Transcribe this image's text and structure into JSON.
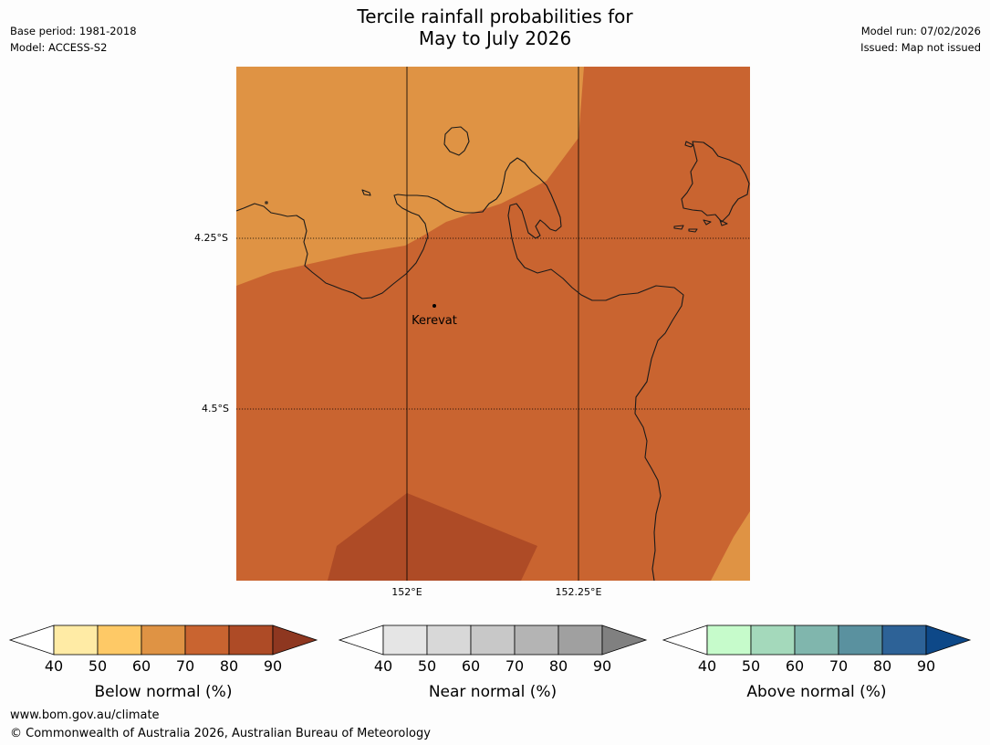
{
  "header": {
    "base_period": "Base period: 1981-2018",
    "model": "Model: ACCESS-S2",
    "title_line1": "Tercile rainfall probabilities for",
    "title_line2": "May to July 2026",
    "model_run": "Model run: 07/02/2026",
    "issued": "Issued: Map not issued"
  },
  "map": {
    "place_label": "Kerevat",
    "lat_labels": [
      "4.25°S",
      "4.5°S"
    ],
    "lon_labels": [
      "152°E",
      "152.25°E"
    ],
    "region_colors": {
      "light_orange": "#df9344",
      "dark_orange": "#c96430",
      "brown": "#ae4b26"
    }
  },
  "colorbars": [
    {
      "caption": "Below normal (%)",
      "ticks": [
        "40",
        "50",
        "60",
        "70",
        "80",
        "90"
      ],
      "colors": [
        "#ffeba5",
        "#fec966",
        "#df9344",
        "#c96430",
        "#ae4b26"
      ],
      "extend_color": "#8e3720"
    },
    {
      "caption": "Near normal (%)",
      "ticks": [
        "40",
        "50",
        "60",
        "70",
        "80",
        "90"
      ],
      "colors": [
        "#e5e5e5",
        "#d8d8d8",
        "#c8c8c8",
        "#b4b4b4",
        "#a0a0a0"
      ],
      "extend_color": "#808080"
    },
    {
      "caption": "Above normal (%)",
      "ticks": [
        "40",
        "50",
        "60",
        "70",
        "80",
        "90"
      ],
      "colors": [
        "#c6fbcb",
        "#a4d9bb",
        "#80b6ad",
        "#5a919f",
        "#2d6297"
      ],
      "extend_color": "#0d4888"
    }
  ],
  "footer": {
    "url": "www.bom.gov.au/climate",
    "copyright": "© Commonwealth of Australia 2026, Australian Bureau of Meteorology"
  }
}
